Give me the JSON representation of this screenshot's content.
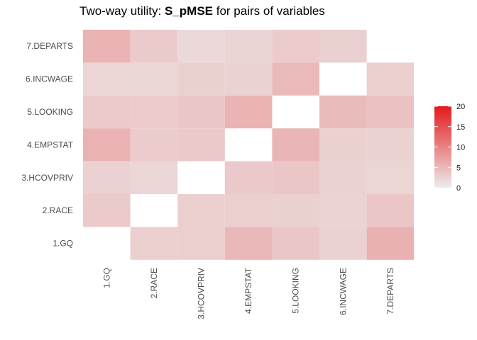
{
  "title": {
    "prefix": "Two-way utility: ",
    "bold": "S_pMSE",
    "suffix": " for pairs of variables"
  },
  "chart_data": {
    "type": "heatmap",
    "xlabel": "",
    "ylabel": "",
    "x_categories": [
      "1.GQ",
      "2.RACE",
      "3.HCOVPRIV",
      "4.EMPSTAT",
      "5.LOOKING",
      "6.INCWAGE",
      "7.DEPARTS"
    ],
    "y_categories": [
      "1.GQ",
      "2.RACE",
      "3.HCOVPRIV",
      "4.EMPSTAT",
      "5.LOOKING",
      "6.INCWAGE",
      "7.DEPARTS"
    ],
    "values": [
      [
        null,
        3.2,
        3.6,
        3.0,
        5.2,
        3.3,
        3.2
      ],
      [
        null,
        null,
        2.0,
        2.9,
        2.4,
        2.0,
        2.3
      ],
      [
        null,
        null,
        null,
        3.6,
        3.6,
        2.6,
        2.0
      ],
      [
        null,
        null,
        null,
        null,
        3.9,
        3.5,
        2.1
      ],
      [
        null,
        null,
        null,
        null,
        null,
        2.5,
        1.6
      ],
      [
        null,
        null,
        null,
        null,
        null,
        null,
        5.0
      ],
      [
        null,
        null,
        null,
        null,
        null,
        null,
        null
      ]
    ],
    "rows_bottom_to_top": [
      [
        null,
        2.8,
        2.9,
        5.0,
        3.6,
        2.6,
        5.6
      ],
      [
        3.2,
        null,
        2.8,
        2.9,
        2.7,
        2.4,
        3.6
      ],
      [
        2.6,
        2.2,
        null,
        3.3,
        3.6,
        2.5,
        2.2
      ],
      [
        5.5,
        3.1,
        3.4,
        null,
        5.2,
        2.7,
        2.6
      ],
      [
        3.2,
        3.1,
        3.6,
        5.3,
        null,
        4.7,
        4.0
      ],
      [
        2.2,
        2.1,
        2.7,
        2.6,
        4.9,
        null,
        2.8
      ],
      [
        5.4,
        3.2,
        1.9,
        2.3,
        3.1,
        2.7,
        null
      ]
    ],
    "legend": {
      "min": 0,
      "max": 20,
      "ticks": [
        0,
        5,
        10,
        15,
        20
      ],
      "low_color": "#ececec",
      "high_color": "#e41a1c"
    },
    "grid": false,
    "legend_position": "right"
  }
}
